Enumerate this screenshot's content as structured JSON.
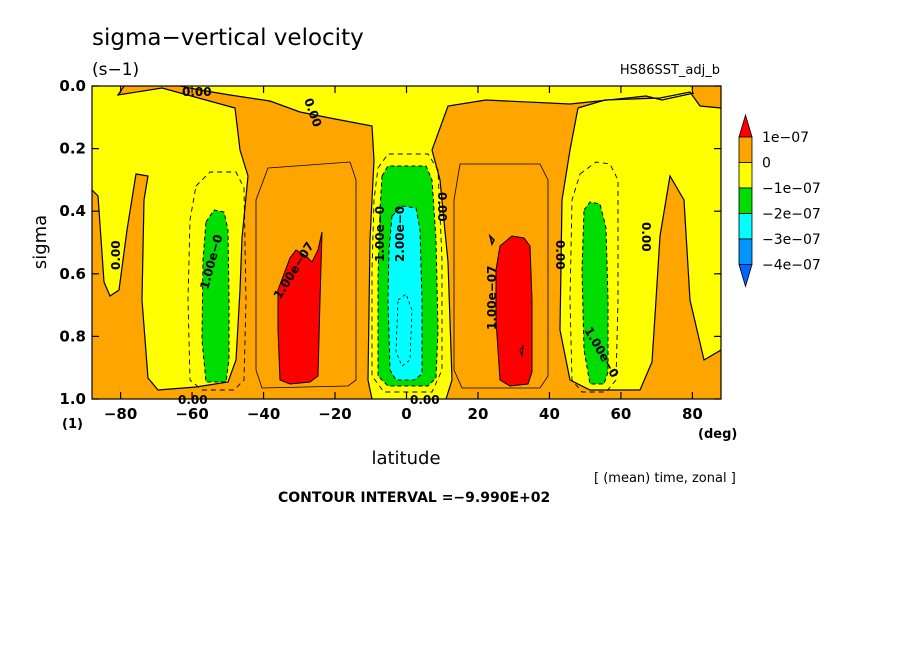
{
  "chart_data": {
    "type": "contour",
    "title": "sigma−vertical velocity",
    "units": "(s−1)",
    "dataset": "HS86SST_adj_b",
    "xlabel": "latitude",
    "xunit": "(deg)",
    "ylabel": "sigma",
    "yunit": "(1)",
    "xlim": [
      -88,
      88
    ],
    "ylim": [
      0,
      1
    ],
    "y_inverted": true,
    "xticks": [
      "−80",
      "−60",
      "−40",
      "−20",
      "0",
      "20",
      "40",
      "60",
      "80"
    ],
    "xtick_values": [
      -80,
      -60,
      -40,
      -20,
      0,
      20,
      40,
      60,
      80
    ],
    "yticks": [
      "0.0",
      "0.2",
      "0.4",
      "0.6",
      "0.8",
      "1.0"
    ],
    "ytick_values": [
      0.0,
      0.2,
      0.4,
      0.6,
      0.8,
      1.0
    ],
    "averaging_note": "[ (mean) time, zonal ]",
    "contour_interval_text": "CONTOUR INTERVAL =−9.990E+02",
    "contour_labels": [
      "0.00",
      "1.00e−0",
      "1.00e−07",
      "2.00e−0"
    ],
    "levels": [
      {
        "label": "1e−07",
        "value": 1e-07,
        "color": "#ff0000"
      },
      {
        "label": "0",
        "value": 0,
        "color": "#ffa500"
      },
      {
        "label": "−1e−07",
        "value": -1e-07,
        "color": "#ffff00"
      },
      {
        "label": "−2e−07",
        "value": -2e-07,
        "color": "#00dd00"
      },
      {
        "label": "−3e−07",
        "value": -3e-07,
        "color": "#00ffff"
      },
      {
        "label": "−4e−07",
        "value": -4e-07,
        "color": "#0096ff"
      }
    ],
    "legend_extend_colors": {
      "above": "#ff0000",
      "below": "#0064ff"
    },
    "legend_placement": "right"
  }
}
